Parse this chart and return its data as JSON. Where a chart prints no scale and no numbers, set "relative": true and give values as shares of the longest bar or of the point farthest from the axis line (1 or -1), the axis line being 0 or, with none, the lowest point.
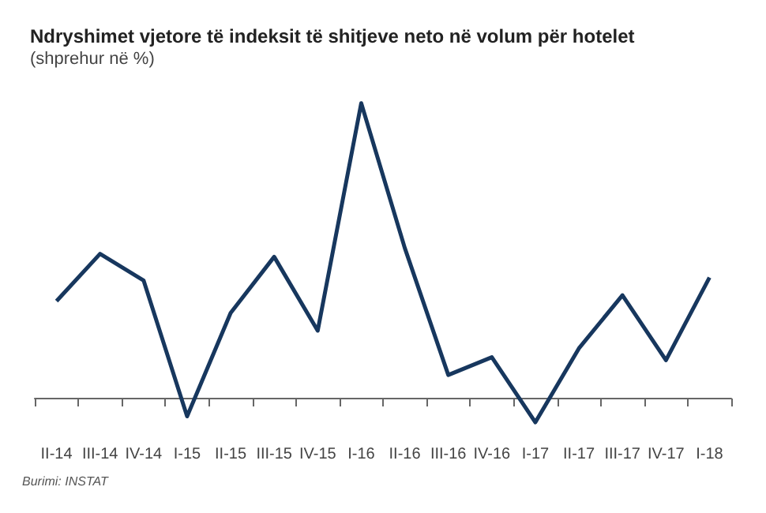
{
  "chart_data": {
    "type": "line",
    "title": "Ndryshimet vjetore të indeksit të shitjeve neto në volum për hotelet",
    "subtitle": "(shprehur në %)",
    "relative": true,
    "categories": [
      "II-14",
      "III-14",
      "IV-14",
      "I-15",
      "II-15",
      "III-15",
      "IV-15",
      "I-16",
      "II-16",
      "III-16",
      "IV-16",
      "I-17",
      "II-17",
      "III-17",
      "IV-17",
      "I-18"
    ],
    "series": [
      {
        "color": "#17375e",
        "values": [
          0.33,
          0.49,
          0.4,
          -0.06,
          0.29,
          0.48,
          0.23,
          1,
          0.51,
          0.08,
          0.14,
          -0.08,
          0.17,
          0.35,
          0.13,
          0.41
        ]
      }
    ],
    "marker": "none",
    "line_style": "solid",
    "annotations": [
      "Burimi: INSTAT"
    ]
  }
}
